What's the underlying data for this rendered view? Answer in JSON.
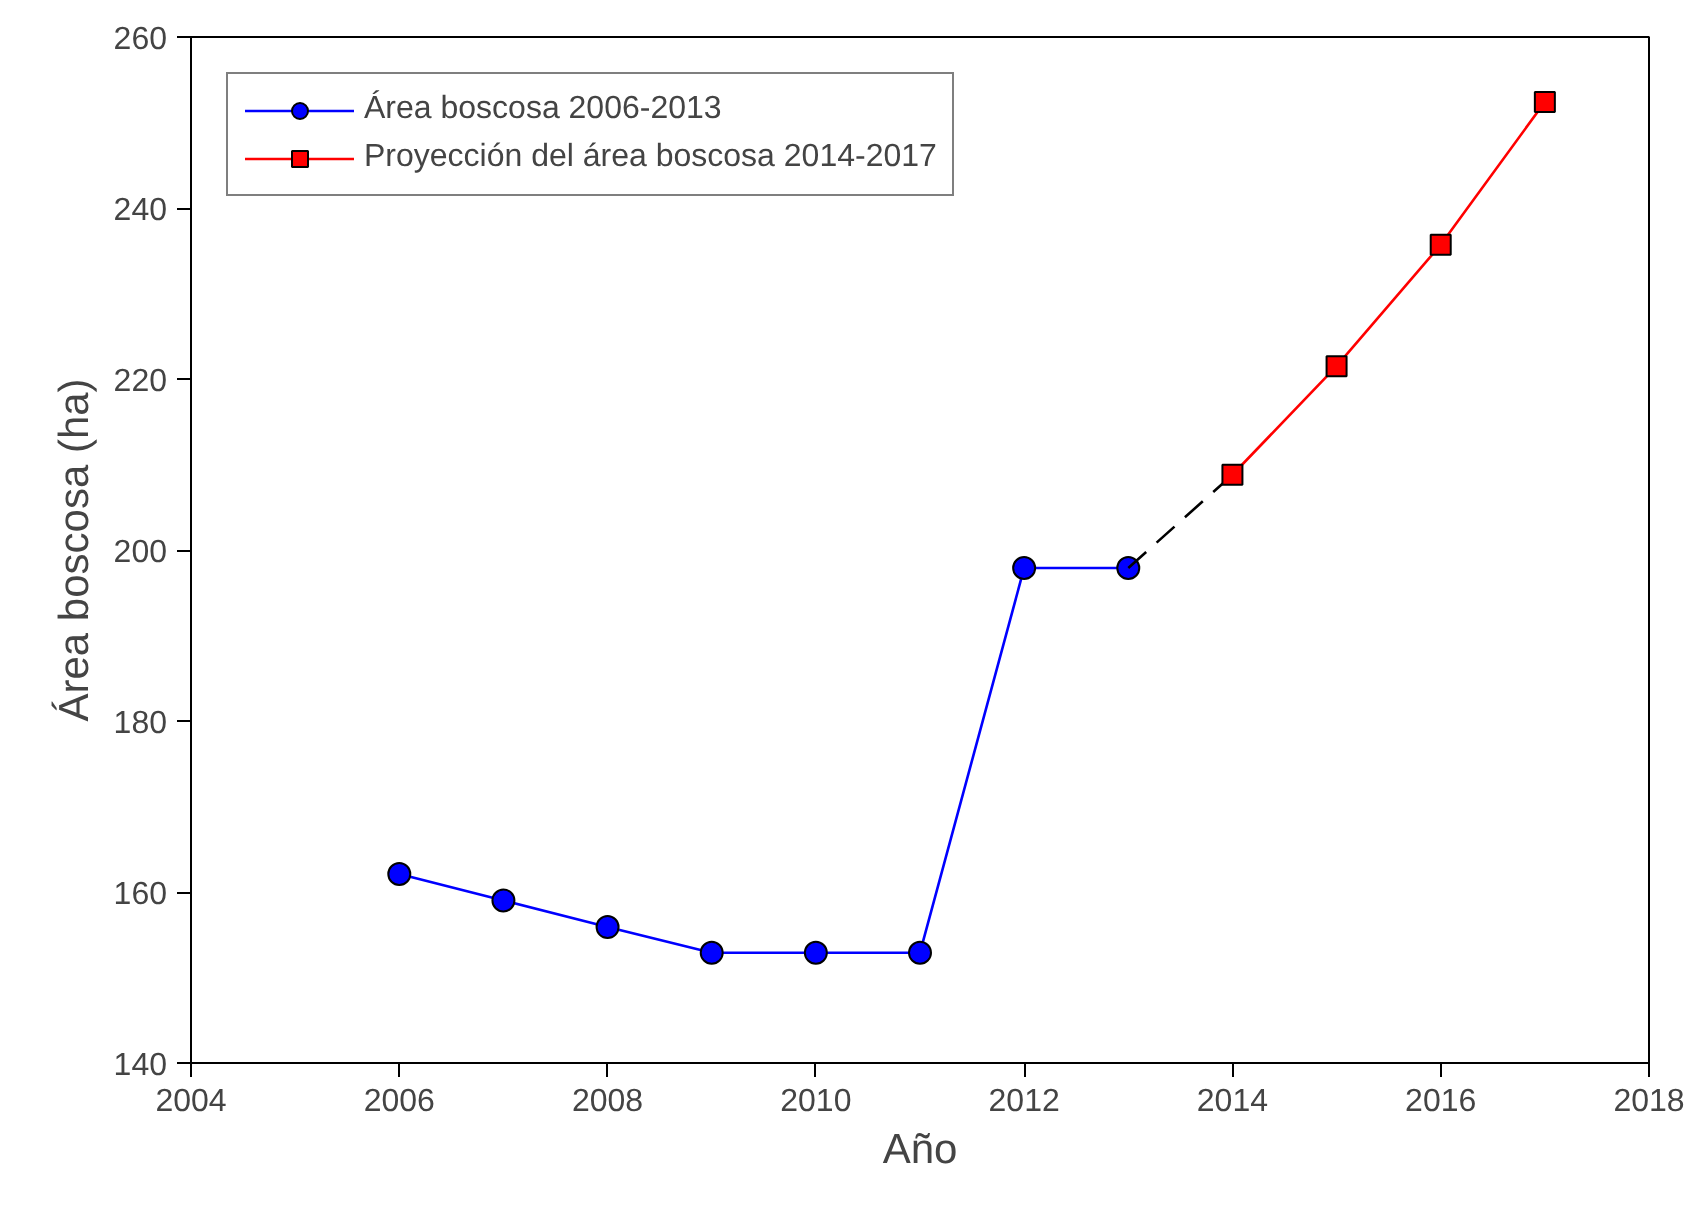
{
  "chart_data": {
    "type": "line",
    "xlabel": "Año",
    "ylabel": "Área boscosa (ha)",
    "xlim": [
      2004,
      2018
    ],
    "xticks": [
      2004,
      2006,
      2008,
      2010,
      2012,
      2014,
      2016,
      2018
    ],
    "ylim": [
      140,
      260
    ],
    "yticks": [
      140,
      160,
      180,
      200,
      220,
      240,
      260
    ],
    "grid": false,
    "legend": "top left",
    "series": [
      {
        "name": "Área boscosa 2006-2013",
        "color": "#0000ff",
        "marker": "circle",
        "line_style": "solid",
        "x": [
          2006,
          2007,
          2008,
          2009,
          2010,
          2011,
          2012,
          2013
        ],
        "values": [
          162.1,
          159,
          155.9,
          152.9,
          152.9,
          152.9,
          197.9,
          197.9
        ]
      },
      {
        "color": "#000000",
        "line_style": "dashed",
        "x": [
          2013,
          2014
        ],
        "values": [
          197.9,
          208.8
        ]
      },
      {
        "name": "Proyección del área boscosa 2014-2017",
        "color": "#ff0000",
        "marker": "square",
        "line_style": "solid",
        "x": [
          2014,
          2015,
          2016,
          2017
        ],
        "values": [
          208.8,
          221.5,
          235.7,
          252.4
        ]
      }
    ]
  }
}
